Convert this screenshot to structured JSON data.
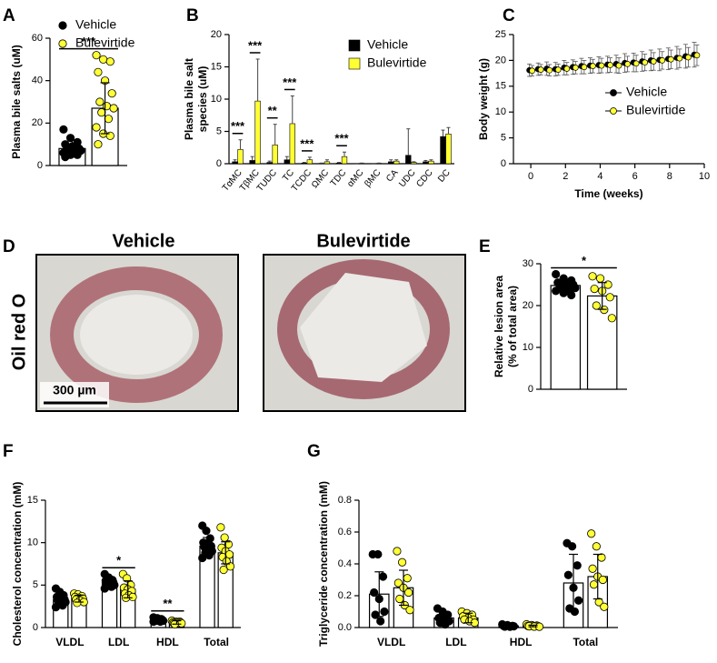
{
  "chart_data": [
    {
      "panel": "A",
      "type": "dotbar",
      "ylabel": [
        "Plasma bile salts (uM)"
      ],
      "ylim": [
        0,
        60
      ],
      "yticks": [
        0,
        20,
        40,
        60
      ],
      "legend": "upper left",
      "series": [
        {
          "name": "Vehicle",
          "color": "#000000",
          "values": [
            8
          ],
          "errors": [
            4
          ],
          "points": [
            [
              17,
              13,
              11,
              10,
              9,
              8,
              8,
              7,
              7,
              6,
              6,
              6,
              5,
              5,
              4
            ]
          ]
        },
        {
          "name": "Bulevirtide",
          "color": "#ffff33",
          "values": [
            27
          ],
          "errors": [
            12
          ],
          "points": [
            [
              52,
              50,
              49,
              44,
              40,
              34,
              30,
              28,
              27,
              25,
              22,
              18,
              15,
              14,
              10
            ]
          ]
        }
      ],
      "annotations": [
        {
          "text": "***"
        }
      ]
    },
    {
      "panel": "B",
      "type": "bar",
      "ylabel": [
        "Plasma bile salt",
        "species (uM)"
      ],
      "ylim": [
        0,
        20
      ],
      "yticks": [
        0,
        5,
        10,
        15,
        20
      ],
      "legend": "upper right",
      "categories": [
        "TαMC",
        "TβMC",
        "TUDC",
        "TC",
        "TCDC",
        "ΩMC",
        "TDC",
        "αMC",
        "βMC",
        "CA",
        "UDC",
        "CDC",
        "DC"
      ],
      "series": [
        {
          "name": "Vehicle",
          "color": "#000000",
          "values": [
            0.3,
            0.5,
            0.2,
            0.6,
            0.1,
            0.05,
            0.1,
            0.02,
            0.02,
            0.3,
            1.3,
            0.3,
            4.2
          ],
          "errors": [
            0.3,
            0.6,
            0.2,
            0.5,
            0.1,
            0.05,
            0.1,
            0.02,
            0.02,
            0.3,
            4.1,
            0.2,
            1.0
          ]
        },
        {
          "name": "Bulevirtide",
          "color": "#ffff33",
          "values": [
            2.2,
            9.7,
            2.9,
            6.2,
            0.6,
            0.3,
            1.1,
            0.05,
            0.05,
            0.4,
            0.2,
            0.4,
            4.6
          ],
          "errors": [
            1.5,
            6.5,
            3.2,
            4.3,
            0.4,
            0.3,
            0.7,
            0.05,
            0.05,
            0.2,
            0.1,
            0.2,
            1.0
          ]
        }
      ],
      "annotations": [
        {
          "category": "TαMC",
          "text": "***"
        },
        {
          "category": "TβMC",
          "text": "***"
        },
        {
          "category": "TUDC",
          "text": "**"
        },
        {
          "category": "TC",
          "text": "***"
        },
        {
          "category": "TCDC",
          "text": "***"
        },
        {
          "category": "TDC",
          "text": "***"
        }
      ]
    },
    {
      "panel": "C",
      "type": "line",
      "ylabel": [
        "Body weight (g)"
      ],
      "xlabel": "Time (weeks)",
      "xlim": [
        -1,
        10
      ],
      "xticks": [
        0,
        2,
        4,
        6,
        8,
        10
      ],
      "ylim": [
        0,
        25
      ],
      "yticks": [
        0,
        5,
        10,
        15,
        20,
        25
      ],
      "legend": "lower right",
      "x": [
        0,
        0.5,
        1,
        1.5,
        2,
        2.5,
        3,
        3.5,
        4,
        4.5,
        5,
        5.5,
        6,
        6.5,
        7,
        7.5,
        8,
        8.5,
        9,
        9.5
      ],
      "series": [
        {
          "name": "Vehicle",
          "color": "#000000",
          "values": [
            18.1,
            18.3,
            18.4,
            18.3,
            18.6,
            18.7,
            18.9,
            19.0,
            19.1,
            19.2,
            19.3,
            19.5,
            19.6,
            19.8,
            20.0,
            20.1,
            20.3,
            20.5,
            20.8,
            21.1
          ],
          "errors": [
            1.2,
            1.2,
            1.3,
            1.3,
            1.4,
            1.4,
            1.5,
            1.5,
            1.6,
            1.6,
            1.7,
            1.8,
            1.8,
            1.9,
            2.0,
            2.1,
            2.1,
            2.2,
            2.3,
            2.4
          ]
        },
        {
          "name": "Bulevirtide",
          "color": "#ffff33",
          "values": [
            18.0,
            18.2,
            18.1,
            18.2,
            18.4,
            18.6,
            18.7,
            18.9,
            19.0,
            19.1,
            19.0,
            19.3,
            19.4,
            19.6,
            19.8,
            20.0,
            20.2,
            20.4,
            20.6,
            21.0
          ],
          "errors": [
            1.0,
            1.0,
            1.1,
            1.1,
            1.2,
            1.2,
            1.3,
            1.3,
            1.4,
            1.4,
            1.5,
            1.5,
            1.6,
            1.6,
            1.7,
            1.7,
            1.8,
            1.8,
            1.9,
            2.0
          ]
        }
      ]
    },
    {
      "panel": "E",
      "type": "dotbar",
      "ylabel": [
        "Relative lesion area",
        "(% of total area)"
      ],
      "ylim": [
        0,
        30
      ],
      "yticks": [
        0,
        10,
        20,
        30
      ],
      "series": [
        {
          "name": "Vehicle",
          "color": "#000000",
          "values": [
            24.8
          ],
          "errors": [
            1.2
          ],
          "points": [
            [
              27.5,
              26.5,
              26,
              25.5,
              25,
              25,
              24.8,
              24.5,
              24.2,
              24,
              23.8,
              23.5,
              23,
              22.5
            ]
          ]
        },
        {
          "name": "Bulevirtide",
          "color": "#ffff33",
          "values": [
            22.3
          ],
          "errors": [
            3.2
          ],
          "points": [
            [
              27,
              26.5,
              25,
              24,
              23.5,
              22,
              20,
              19,
              17
            ]
          ]
        }
      ],
      "annotations": [
        {
          "text": "*"
        }
      ]
    },
    {
      "panel": "F",
      "type": "dotbar",
      "ylabel": [
        "Cholesterol concentration (mM)"
      ],
      "ylim": [
        0,
        15
      ],
      "yticks": [
        0,
        5,
        10,
        15
      ],
      "categories": [
        "VLDL",
        "LDL",
        "HDL",
        "Total"
      ],
      "series": [
        {
          "name": "Vehicle",
          "color": "#000000",
          "values": [
            3.3,
            5.3,
            0.9,
            9.6
          ],
          "errors": [
            0.6,
            0.5,
            0.2,
            1.0
          ],
          "points": [
            [
              4.6,
              4.2,
              3.8,
              3.6,
              3.4,
              3.3,
              3.2,
              3.1,
              3.0,
              2.8,
              2.6,
              2.4
            ],
            [
              6.3,
              5.9,
              5.6,
              5.5,
              5.4,
              5.3,
              5.2,
              5.1,
              5.0,
              4.9,
              4.8,
              4.6
            ],
            [
              1.2,
              1.1,
              1.0,
              1.0,
              0.9,
              0.9,
              0.9,
              0.8,
              0.8,
              0.8,
              0.7,
              0.7
            ],
            [
              12.0,
              11.4,
              10.5,
              10.0,
              9.8,
              9.6,
              9.5,
              9.3,
              9.0,
              8.8,
              8.5,
              8.2
            ]
          ]
        },
        {
          "name": "Bulevirtide",
          "color": "#ffff33",
          "values": [
            3.4,
            4.5,
            0.6,
            8.8
          ],
          "errors": [
            0.4,
            1.0,
            0.2,
            1.3
          ],
          "points": [
            [
              4.0,
              3.9,
              3.7,
              3.6,
              3.5,
              3.4,
              3.3,
              3.2,
              3.0,
              2.9
            ],
            [
              6.3,
              5.8,
              5.0,
              4.7,
              4.5,
              4.3,
              4.0,
              3.8,
              3.6,
              3.5
            ],
            [
              0.8,
              0.7,
              0.7,
              0.6,
              0.6,
              0.6,
              0.5,
              0.5,
              0.5,
              0.4
            ],
            [
              11.8,
              10.6,
              9.8,
              9.4,
              9.0,
              8.6,
              8.3,
              7.8,
              7.2,
              6.8
            ]
          ]
        }
      ],
      "annotations": [
        {
          "category": "LDL",
          "text": "*"
        },
        {
          "category": "HDL",
          "text": "**"
        }
      ]
    },
    {
      "panel": "G",
      "type": "dotbar",
      "ylabel": [
        "Triglyceride concentration (mM)"
      ],
      "ylim": [
        0,
        0.8
      ],
      "yticks": [
        {
          "value": 0,
          "label": "0.0"
        },
        0.2,
        0.4,
        0.6,
        0.8
      ],
      "categories": [
        "VLDL",
        "LDL",
        "HDL",
        "Total"
      ],
      "series": [
        {
          "name": "Vehicle",
          "color": "#000000",
          "values": [
            0.21,
            0.06,
            0.01,
            0.28
          ],
          "errors": [
            0.14,
            0.04,
            0.005,
            0.18
          ],
          "points": [
            [
              0.46,
              0.46,
              0.32,
              0.22,
              0.18,
              0.1,
              0.08,
              0.04
            ],
            [
              0.12,
              0.1,
              0.08,
              0.06,
              0.05,
              0.04,
              0.03,
              0.02
            ],
            [
              0.02,
              0.015,
              0.01,
              0.01,
              0.01,
              0.008,
              0.006,
              0.005
            ],
            [
              0.53,
              0.51,
              0.39,
              0.33,
              0.25,
              0.17,
              0.12,
              0.1
            ]
          ]
        },
        {
          "name": "Bulevirtide",
          "color": "#ffff33",
          "values": [
            0.25,
            0.06,
            0.01,
            0.32
          ],
          "errors": [
            0.11,
            0.03,
            0.005,
            0.14
          ],
          "points": [
            [
              0.48,
              0.41,
              0.31,
              0.28,
              0.25,
              0.22,
              0.18,
              0.14,
              0.11
            ],
            [
              0.1,
              0.09,
              0.08,
              0.07,
              0.06,
              0.05,
              0.05,
              0.04,
              0.03
            ],
            [
              0.02,
              0.015,
              0.012,
              0.01,
              0.01,
              0.009,
              0.008,
              0.006,
              0.005
            ],
            [
              0.59,
              0.51,
              0.44,
              0.37,
              0.32,
              0.3,
              0.27,
              0.16,
              0.13
            ]
          ]
        }
      ]
    }
  ],
  "panel_d": {
    "label": "D",
    "titles": [
      "Vehicle",
      "Bulevirtide"
    ],
    "stain": "Oil red O",
    "scale_bar": "300 µm"
  }
}
